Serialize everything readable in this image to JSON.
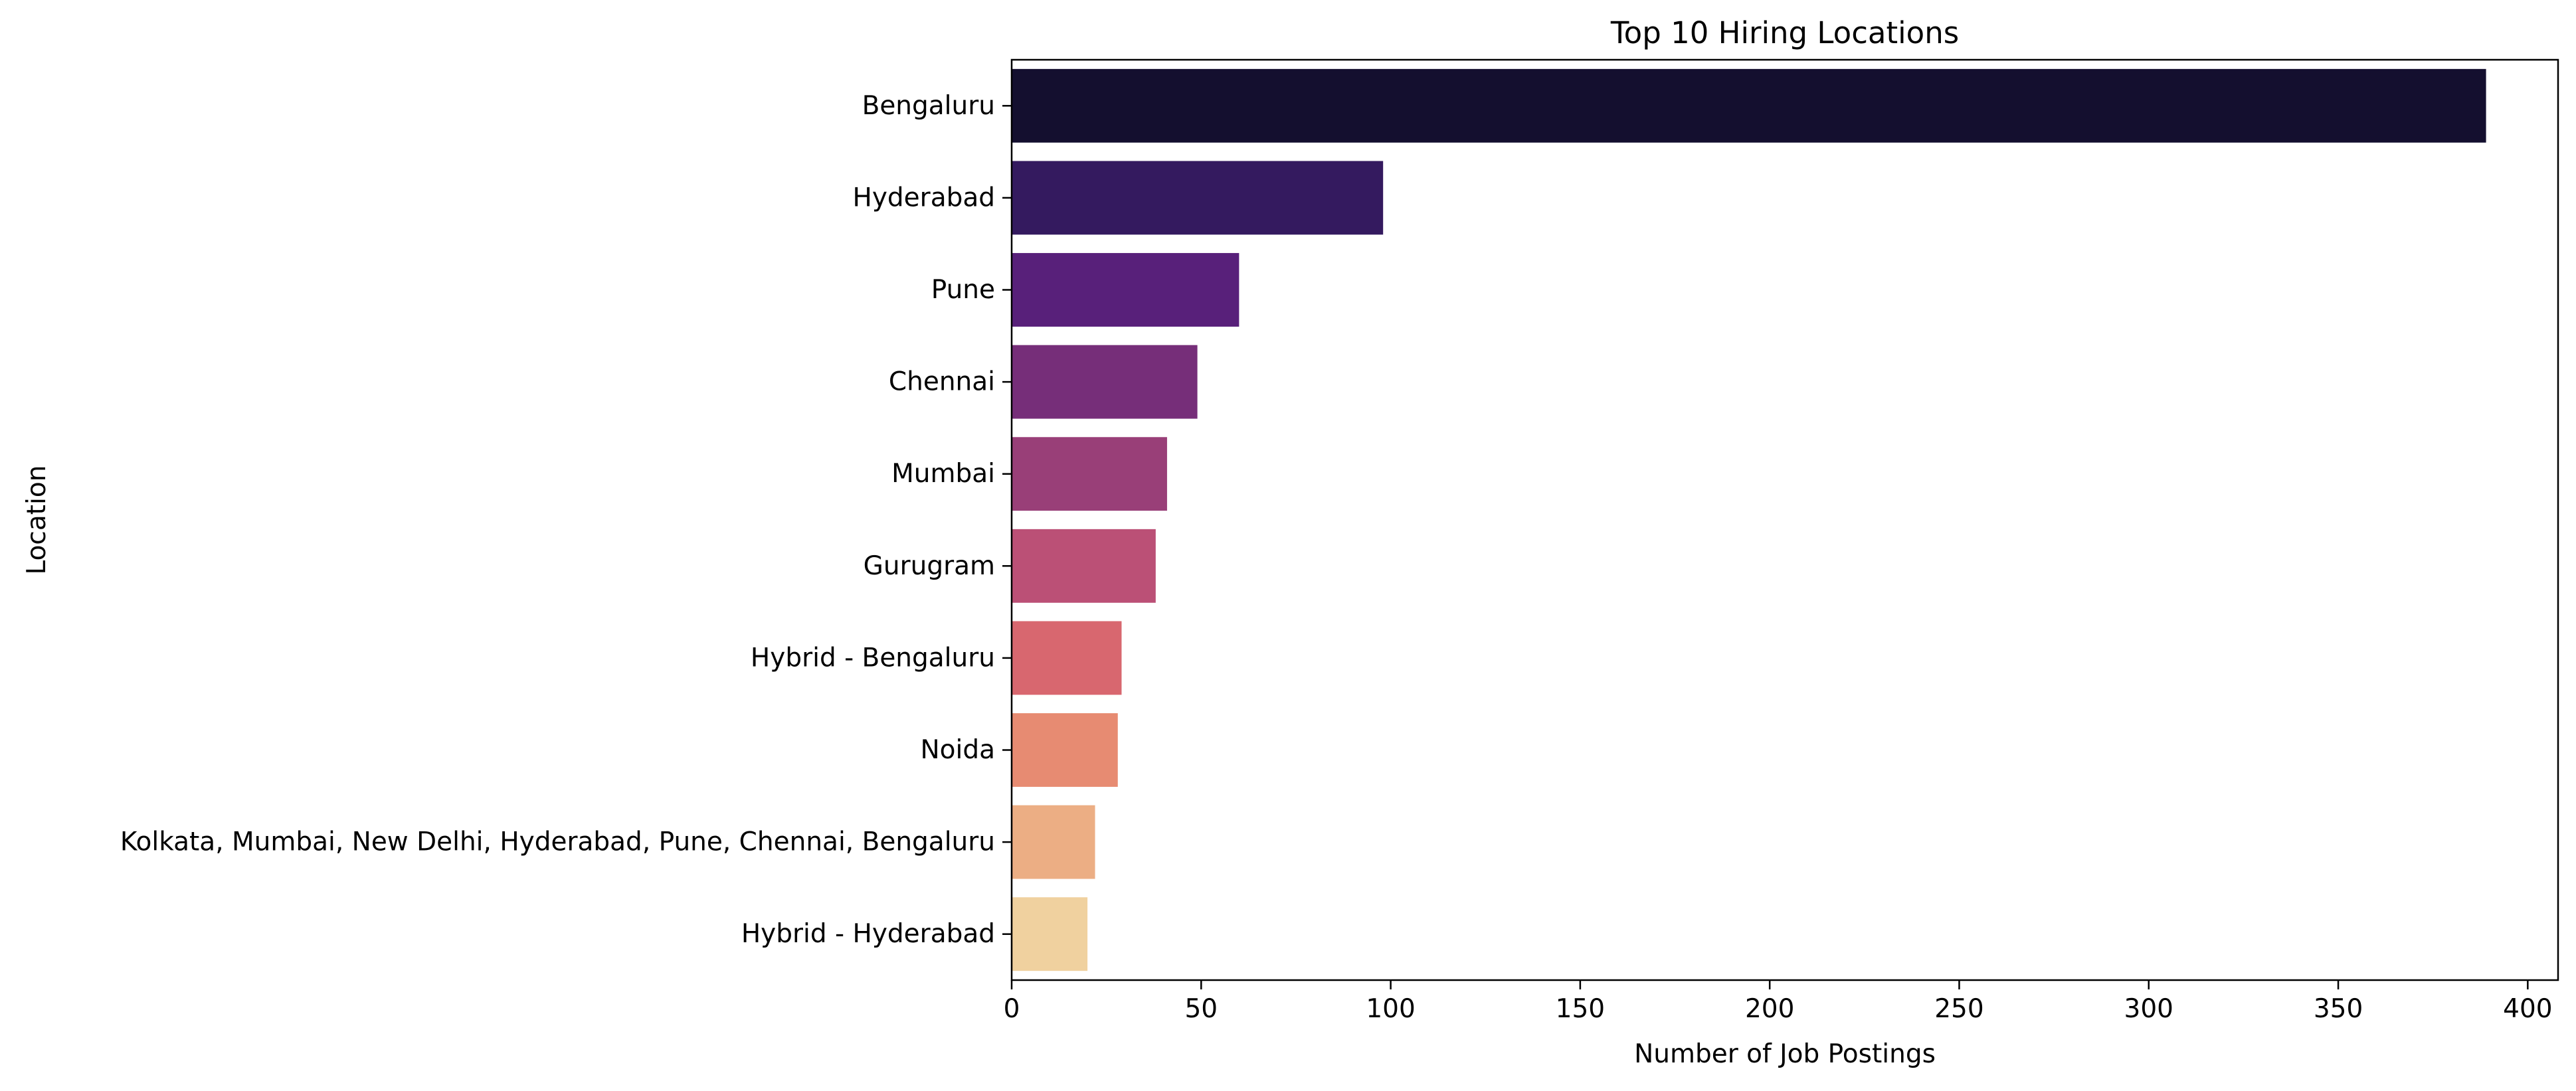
{
  "chart_data": {
    "type": "bar",
    "orientation": "horizontal",
    "title": "Top 10 Hiring Locations",
    "xlabel": "Number of Job Postings",
    "ylabel": "Location",
    "xlim": [
      0,
      408
    ],
    "xticks": [
      0,
      50,
      100,
      150,
      200,
      250,
      300,
      350,
      400
    ],
    "grid": false,
    "categories": [
      "Bengaluru",
      "Hyderabad",
      "Pune",
      "Chennai",
      "Mumbai",
      "Gurugram",
      "Hybrid - Bengaluru",
      "Noida",
      "Kolkata, Mumbai, New Delhi, Hyderabad, Pune, Chennai, Bengaluru",
      "Hybrid - Hyderabad"
    ],
    "values": [
      389,
      98,
      60,
      49,
      41,
      38,
      29,
      28,
      22,
      20
    ],
    "colors": [
      "#140f2f",
      "#341a5f",
      "#58207a",
      "#762e79",
      "#993f78",
      "#bb5076",
      "#d8676f",
      "#e78b72",
      "#ecae84",
      "#f0d19f"
    ]
  }
}
